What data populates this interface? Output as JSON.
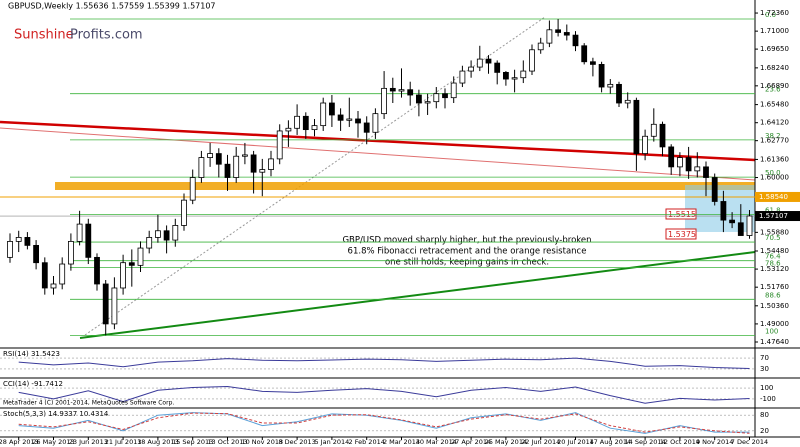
{
  "chart_data": {
    "type": "candlestick",
    "header": "GBPUSD,Weekly  1.55636 1.57559 1.55399 1.57107",
    "logo": {
      "first": "Sunshine",
      "second": "Profits.com"
    },
    "ylim": [
      1.4719,
      1.7334
    ],
    "yticks": [
      {
        "value": 1.7236,
        "label": "1.72360"
      },
      {
        "value": 1.71,
        "label": "1.71000"
      },
      {
        "value": 1.6965,
        "label": "1.69650"
      },
      {
        "value": 1.6824,
        "label": "1.68240"
      },
      {
        "value": 1.6689,
        "label": "1.66890"
      },
      {
        "value": 1.6548,
        "label": "1.65480"
      },
      {
        "value": 1.6412,
        "label": "1.64120"
      },
      {
        "value": 1.6277,
        "label": "1.62770"
      },
      {
        "value": 1.6136,
        "label": "1.61360"
      },
      {
        "value": 1.6,
        "label": "1.60000"
      },
      {
        "value": 1.5588,
        "label": "1.55880"
      },
      {
        "value": 1.5448,
        "label": "1.54480"
      },
      {
        "value": 1.5312,
        "label": "1.53120"
      },
      {
        "value": 1.5176,
        "label": "1.51760"
      },
      {
        "value": 1.5036,
        "label": "1.50360"
      },
      {
        "value": 1.49,
        "label": "1.49000"
      },
      {
        "value": 1.4764,
        "label": "1.47640"
      }
    ],
    "current_price": {
      "value": 1.57107,
      "label": "1.57107"
    },
    "orange_level": {
      "value": 1.5854,
      "label": "1.58540"
    },
    "boxed_labels": [
      "1.5515",
      "1.5375"
    ],
    "fib": [
      {
        "label": "0.0",
        "value": 1.7191
      },
      {
        "label": "23.6",
        "value": 1.663
      },
      {
        "label": "38.2",
        "value": 1.6283
      },
      {
        "label": "50.0",
        "value": 1.6003
      },
      {
        "label": "61.8",
        "value": 1.5722
      },
      {
        "label": "70.5",
        "value": 1.5515
      },
      {
        "label": "76.4",
        "value": 1.5375
      },
      {
        "label": "78.6",
        "value": 1.5323
      },
      {
        "label": "88.6",
        "value": 1.5085
      },
      {
        "label": "100",
        "value": 1.4814
      }
    ],
    "annotation": [
      "GBP/USD moved sharply higher, but the previously-broken",
      "61.8% Fibonacci retracement and the orange resistance",
      "one still holds, keeping gains in check."
    ],
    "candles": [
      [
        1.54,
        1.558,
        1.536,
        1.552
      ],
      [
        1.552,
        1.56,
        1.544,
        1.555
      ],
      [
        1.555,
        1.559,
        1.546,
        1.549
      ],
      [
        1.549,
        1.553,
        1.531,
        1.536
      ],
      [
        1.536,
        1.54,
        1.512,
        1.517
      ],
      [
        1.517,
        1.526,
        1.512,
        1.52
      ],
      [
        1.52,
        1.54,
        1.516,
        1.535
      ],
      [
        1.535,
        1.558,
        1.53,
        1.552
      ],
      [
        1.552,
        1.575,
        1.549,
        1.565
      ],
      [
        1.565,
        1.569,
        1.535,
        1.54
      ],
      [
        1.54,
        1.543,
        1.515,
        1.52
      ],
      [
        1.52,
        1.523,
        1.4814,
        1.49
      ],
      [
        1.49,
        1.525,
        1.486,
        1.517
      ],
      [
        1.517,
        1.542,
        1.512,
        1.536
      ],
      [
        1.536,
        1.546,
        1.518,
        1.534
      ],
      [
        1.534,
        1.552,
        1.529,
        1.547
      ],
      [
        1.547,
        1.56,
        1.543,
        1.555
      ],
      [
        1.555,
        1.572,
        1.551,
        1.56
      ],
      [
        1.56,
        1.564,
        1.543,
        1.553
      ],
      [
        1.553,
        1.569,
        1.548,
        1.564
      ],
      [
        1.564,
        1.588,
        1.56,
        1.583
      ],
      [
        1.583,
        1.606,
        1.58,
        1.6
      ],
      [
        1.6,
        1.62,
        1.596,
        1.615
      ],
      [
        1.615,
        1.626,
        1.608,
        1.618
      ],
      [
        1.618,
        1.622,
        1.6,
        1.61
      ],
      [
        1.61,
        1.617,
        1.59,
        1.6
      ],
      [
        1.6,
        1.623,
        1.596,
        1.616
      ],
      [
        1.616,
        1.626,
        1.61,
        1.617
      ],
      [
        1.617,
        1.62,
        1.588,
        1.604
      ],
      [
        1.604,
        1.614,
        1.586,
        1.606
      ],
      [
        1.606,
        1.62,
        1.601,
        1.614
      ],
      [
        1.614,
        1.64,
        1.61,
        1.635
      ],
      [
        1.635,
        1.643,
        1.623,
        1.637
      ],
      [
        1.637,
        1.655,
        1.632,
        1.646
      ],
      [
        1.646,
        1.649,
        1.629,
        1.636
      ],
      [
        1.636,
        1.644,
        1.631,
        1.639
      ],
      [
        1.639,
        1.66,
        1.635,
        1.656
      ],
      [
        1.656,
        1.662,
        1.638,
        1.647
      ],
      [
        1.647,
        1.652,
        1.635,
        1.643
      ],
      [
        1.643,
        1.66,
        1.638,
        1.644
      ],
      [
        1.644,
        1.65,
        1.63,
        1.641
      ],
      [
        1.641,
        1.646,
        1.625,
        1.634
      ],
      [
        1.634,
        1.652,
        1.629,
        1.648
      ],
      [
        1.648,
        1.68,
        1.644,
        1.667
      ],
      [
        1.667,
        1.675,
        1.656,
        1.665
      ],
      [
        1.665,
        1.682,
        1.66,
        1.666
      ],
      [
        1.666,
        1.672,
        1.654,
        1.662
      ],
      [
        1.662,
        1.666,
        1.646,
        1.656
      ],
      [
        1.656,
        1.663,
        1.647,
        1.657
      ],
      [
        1.657,
        1.668,
        1.652,
        1.663
      ],
      [
        1.663,
        1.667,
        1.652,
        1.66
      ],
      [
        1.66,
        1.676,
        1.656,
        1.671
      ],
      [
        1.671,
        1.684,
        1.668,
        1.68
      ],
      [
        1.68,
        1.688,
        1.675,
        1.683
      ],
      [
        1.683,
        1.699,
        1.68,
        1.689
      ],
      [
        1.689,
        1.692,
        1.678,
        1.686
      ],
      [
        1.686,
        1.688,
        1.67,
        1.679
      ],
      [
        1.679,
        1.68,
        1.669,
        1.674
      ],
      [
        1.674,
        1.681,
        1.664,
        1.675
      ],
      [
        1.675,
        1.688,
        1.671,
        1.68
      ],
      [
        1.68,
        1.7,
        1.677,
        1.696
      ],
      [
        1.696,
        1.705,
        1.693,
        1.701
      ],
      [
        1.701,
        1.718,
        1.698,
        1.711
      ],
      [
        1.711,
        1.7191,
        1.706,
        1.709
      ],
      [
        1.709,
        1.715,
        1.703,
        1.707
      ],
      [
        1.707,
        1.71,
        1.695,
        1.699
      ],
      [
        1.699,
        1.701,
        1.685,
        1.687
      ],
      [
        1.687,
        1.69,
        1.676,
        1.685
      ],
      [
        1.685,
        1.687,
        1.664,
        1.668
      ],
      [
        1.668,
        1.674,
        1.663,
        1.67
      ],
      [
        1.67,
        1.672,
        1.653,
        1.656
      ],
      [
        1.656,
        1.664,
        1.652,
        1.658
      ],
      [
        1.658,
        1.66,
        1.605,
        1.618
      ],
      [
        1.618,
        1.636,
        1.613,
        1.631
      ],
      [
        1.631,
        1.652,
        1.627,
        1.64
      ],
      [
        1.64,
        1.642,
        1.616,
        1.623
      ],
      [
        1.623,
        1.625,
        1.602,
        1.608
      ],
      [
        1.608,
        1.619,
        1.601,
        1.615
      ],
      [
        1.615,
        1.623,
        1.599,
        1.605
      ],
      [
        1.605,
        1.619,
        1.6,
        1.608
      ],
      [
        1.608,
        1.612,
        1.586,
        1.6
      ],
      [
        1.6,
        1.603,
        1.579,
        1.582
      ],
      [
        1.582,
        1.59,
        1.559,
        1.568
      ],
      [
        1.568,
        1.574,
        1.562,
        1.566
      ],
      [
        1.566,
        1.58,
        1.559,
        1.5564
      ],
      [
        1.5564,
        1.5756,
        1.554,
        1.5711
      ]
    ],
    "dates": [
      "28 Apr 2013",
      "26 May 2013",
      "23 Jun 2013",
      "21 Jul 2013",
      "18 Aug 2013",
      "15 Sep 2013",
      "13 Oct 2013",
      "10 Nov 2013",
      "8 Dec 2013",
      "5 Jan 2014",
      "2 Feb 2014",
      "2 Mar 2014",
      "30 Mar 2014",
      "27 Apr 2014",
      "25 May 2014",
      "22 Jun 2014",
      "20 Jul 2014",
      "17 Aug 2014",
      "14 Sep 2014",
      "12 Oct 2014",
      "9 Nov 2014",
      "7 Dec 2014"
    ],
    "indicators": [
      {
        "type": "line",
        "title": "RSI(14) 31.5423",
        "ylim": [
          0,
          100
        ],
        "yticks": [
          70,
          30
        ],
        "series": [
          {
            "color": "#3a3a9a",
            "values": [
              55,
              45,
              52,
              38,
              55,
              60,
              68,
              62,
              60,
              63,
              66,
              64,
              58,
              62,
              66,
              64,
              70,
              58,
              40,
              42,
              35,
              31.5
            ]
          }
        ]
      },
      {
        "type": "line",
        "title": "CCI(14) -91.7412",
        "ylim": [
          -250,
          250
        ],
        "yticks": [
          100,
          -100
        ],
        "series": [
          {
            "color": "#3a3a9a",
            "values": [
              20,
              -100,
              50,
              -150,
              60,
              110,
              130,
              40,
              20,
              60,
              90,
              40,
              -60,
              60,
              110,
              40,
              120,
              -40,
              -180,
              -90,
              -120,
              -91.7
            ]
          }
        ]
      },
      {
        "type": "line",
        "title": "Stoch(5,3,3) 14.9337 10.4314",
        "ylim": [
          0,
          100
        ],
        "yticks": [
          80,
          20
        ],
        "series": [
          {
            "color": "#5aa0d8",
            "values": [
              40,
              30,
              60,
              20,
              80,
              90,
              85,
              40,
              55,
              85,
              80,
              60,
              30,
              70,
              85,
              60,
              90,
              30,
              10,
              40,
              15,
              14.9
            ]
          },
          {
            "color": "#d04040",
            "values": [
              45,
              35,
              55,
              25,
              70,
              88,
              86,
              50,
              50,
              80,
              82,
              62,
              35,
              65,
              82,
              65,
              85,
              40,
              15,
              35,
              20,
              10.4
            ]
          }
        ]
      }
    ],
    "copyright": "MetaTrader 4 (C) 2001-2014, MetaQuotes Software Corp."
  }
}
